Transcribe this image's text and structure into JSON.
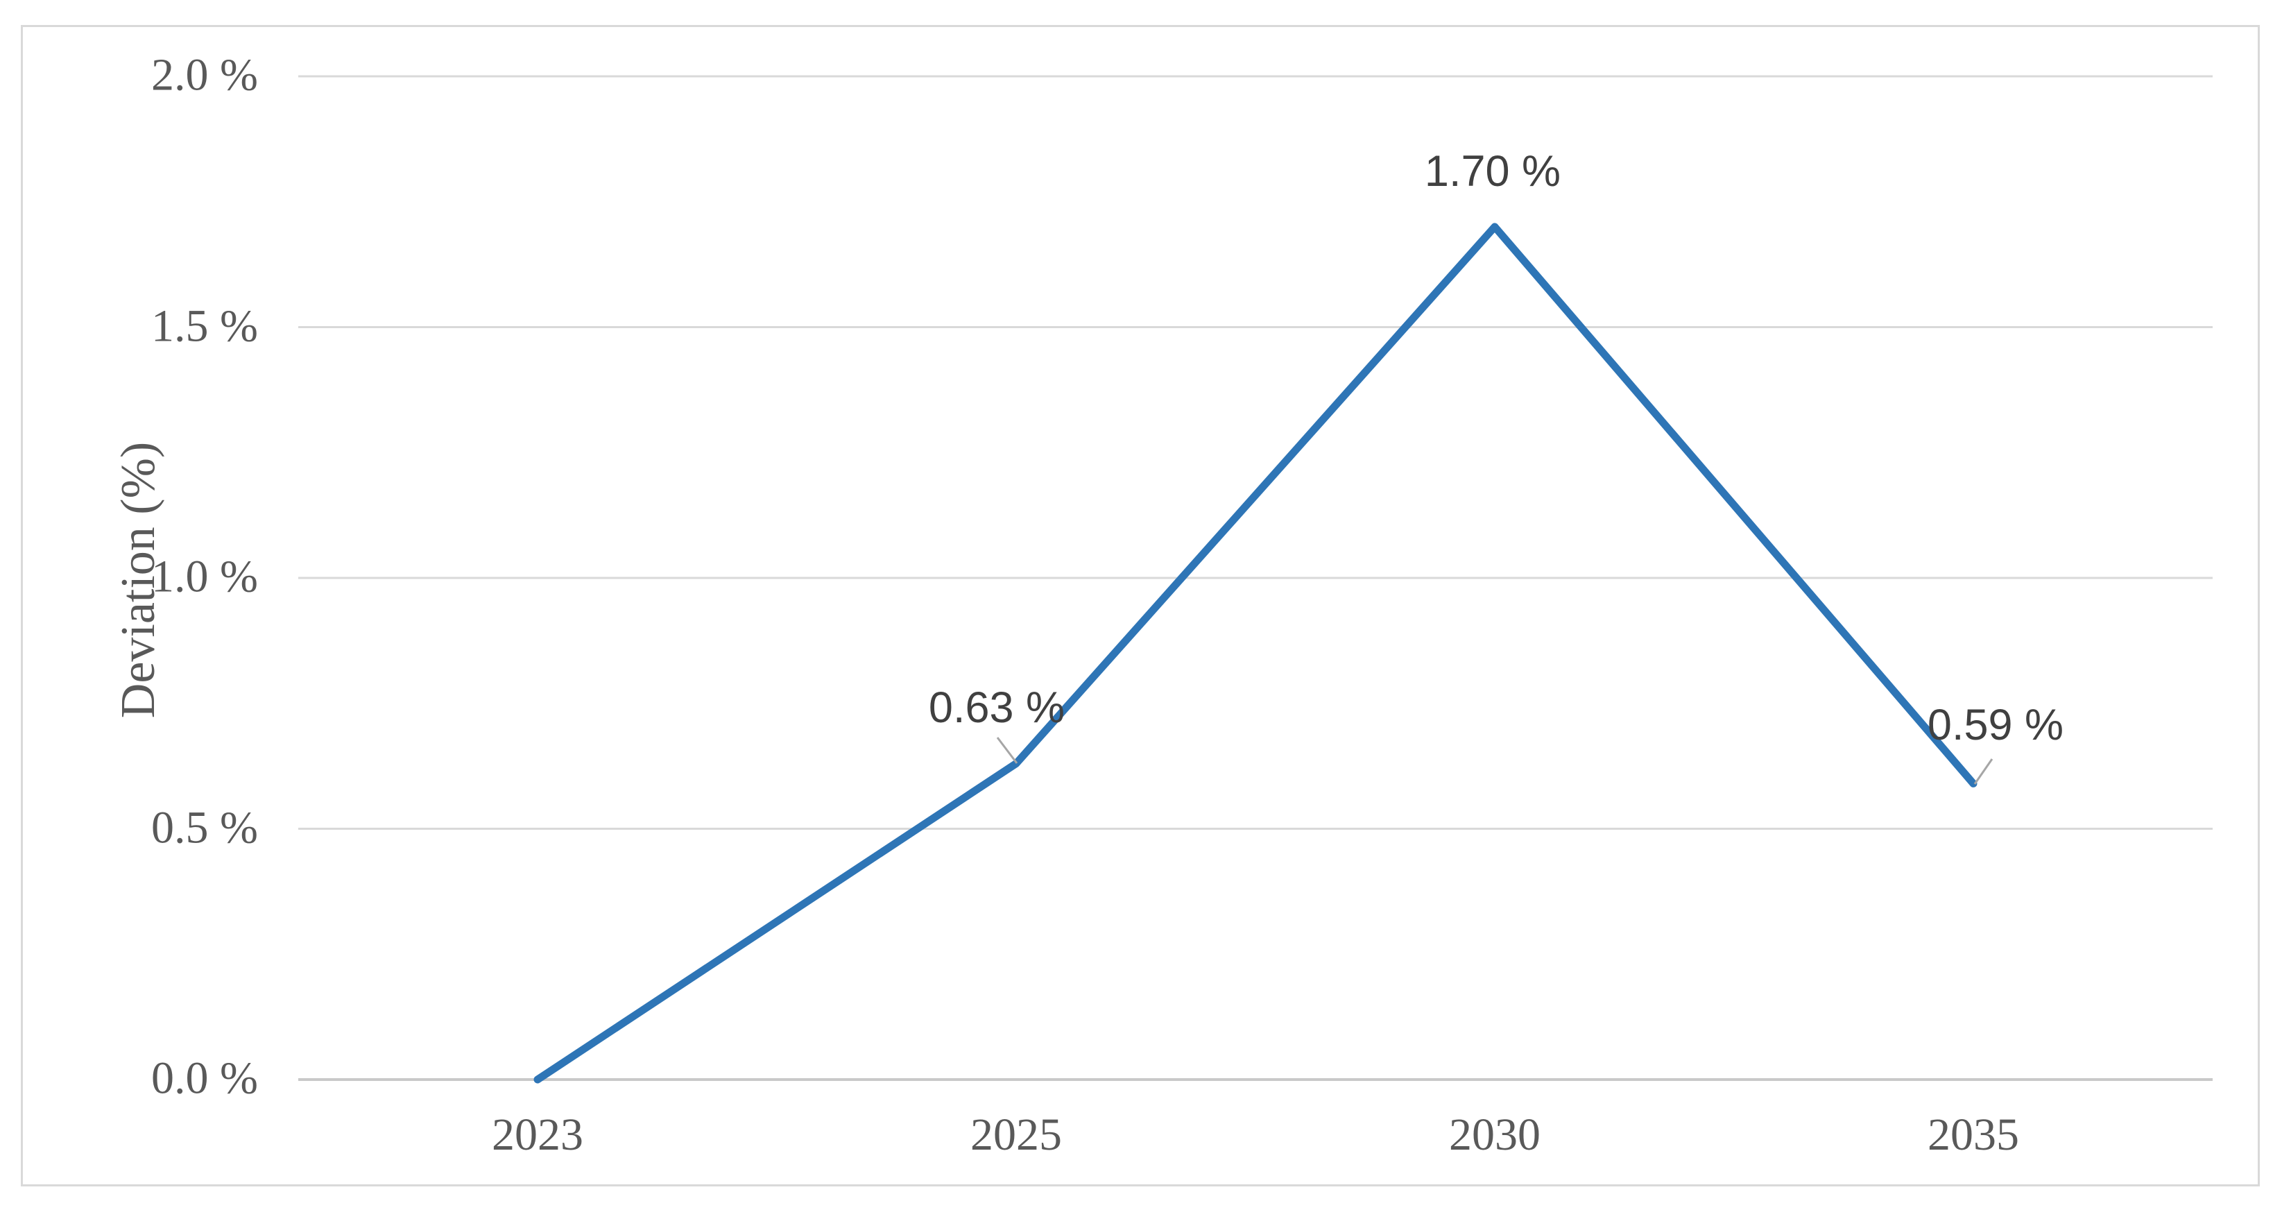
{
  "figure": {
    "background": "#ffffff",
    "border_color": "#d9d9d9"
  },
  "chart_data": {
    "type": "line",
    "title": "",
    "xlabel": "",
    "ylabel": "Deviation (%)",
    "categories": [
      "2023",
      "2025",
      "2030",
      "2035"
    ],
    "series": [
      {
        "name": "Deviation",
        "color": "#2e75b6",
        "values": [
          0.0,
          0.63,
          1.7,
          0.59
        ]
      }
    ],
    "point_labels": [
      "",
      "0.63 %",
      "1.70 %",
      "0.59 %"
    ],
    "y_ticks": [
      {
        "value": 0.0,
        "label": "0.0 %"
      },
      {
        "value": 0.5,
        "label": "0.5 %"
      },
      {
        "value": 1.0,
        "label": "1.0 %"
      },
      {
        "value": 1.5,
        "label": "1.5 %"
      },
      {
        "value": 2.0,
        "label": "2.0 %"
      }
    ],
    "ylim": [
      0.0,
      2.0
    ],
    "grid": "horizontal-only",
    "legend": "none",
    "colors": {
      "line": "#2e75b6",
      "gridline": "#d9d9d9",
      "axis_line": "#c9c9c9",
      "tick_text": "#595959",
      "data_label_text": "#404040",
      "leader_line": "#a6a6a6"
    }
  }
}
